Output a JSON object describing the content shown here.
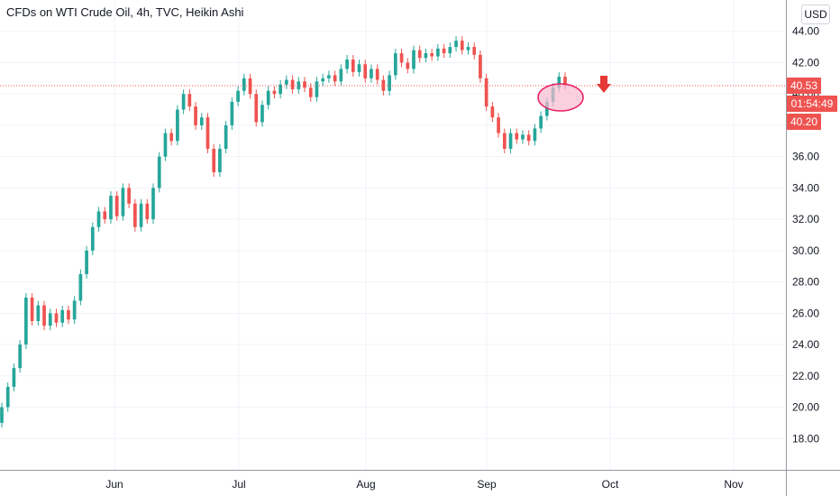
{
  "title": "CFDs on WTI Crude Oil, 4h, TVC, Heikin Ashi",
  "currency_button": "USD",
  "colors": {
    "up": "#26a69a",
    "down": "#ef5350",
    "price_line": "#ef5350",
    "label_bg": "#ef5350",
    "ellipse_fill": "#f8bbd0",
    "ellipse_stroke": "#e91e63",
    "arrow": "#e53935",
    "grid": "#f0f3fa",
    "axis_line": "#9598a1"
  },
  "price_labels": {
    "last": "40.53",
    "countdown": "01:54:49",
    "other": "40.20"
  },
  "chart_data": {
    "type": "candlestick",
    "title": "CFDs on WTI Crude Oil, 4h, TVC, Heikin Ashi",
    "ylim": [
      16,
      46
    ],
    "y_ticks": [
      "18.00",
      "20.00",
      "22.00",
      "24.00",
      "26.00",
      "28.00",
      "30.00",
      "32.00",
      "34.00",
      "36.00",
      "38.00",
      "40.00",
      "42.00",
      "44.00"
    ],
    "x_ticks": [
      "Jun",
      "Jul",
      "Aug",
      "Sep",
      "Oct",
      "Nov"
    ],
    "price_line": 40.53,
    "grid": true,
    "series": [
      {
        "values": [
          [
            19.0,
            20.0
          ],
          [
            20.0,
            21.3
          ],
          [
            21.3,
            22.5
          ],
          [
            22.5,
            24.0
          ],
          [
            24.0,
            27.0
          ],
          [
            27.0,
            25.5
          ],
          [
            25.5,
            26.5
          ],
          [
            26.5,
            25.2
          ],
          [
            25.2,
            26.0
          ],
          [
            26.0,
            25.4
          ],
          [
            25.4,
            26.2
          ],
          [
            26.2,
            25.6
          ],
          [
            25.6,
            26.8
          ],
          [
            26.8,
            28.5
          ],
          [
            28.5,
            30.0
          ],
          [
            30.0,
            31.5
          ],
          [
            31.5,
            32.5
          ],
          [
            32.5,
            32.0
          ],
          [
            32.0,
            33.5
          ],
          [
            33.5,
            32.2
          ],
          [
            32.2,
            34.0
          ],
          [
            34.0,
            33.0
          ],
          [
            33.0,
            31.5
          ],
          [
            31.5,
            33.0
          ],
          [
            33.0,
            32.0
          ],
          [
            32.0,
            34.0
          ],
          [
            34.0,
            36.0
          ],
          [
            36.0,
            37.5
          ],
          [
            37.5,
            37.0
          ],
          [
            37.0,
            39.0
          ],
          [
            39.0,
            40.0
          ],
          [
            40.0,
            39.2
          ],
          [
            39.2,
            38.0
          ],
          [
            38.0,
            38.5
          ],
          [
            38.5,
            36.5
          ],
          [
            36.5,
            35.0
          ],
          [
            35.0,
            36.5
          ],
          [
            36.5,
            38.0
          ],
          [
            38.0,
            39.5
          ],
          [
            39.5,
            40.2
          ],
          [
            40.2,
            41.0
          ],
          [
            41.0,
            40.0
          ],
          [
            40.0,
            38.2
          ],
          [
            38.2,
            39.3
          ],
          [
            39.3,
            40.2
          ],
          [
            40.2,
            40.0
          ],
          [
            40.0,
            40.6
          ],
          [
            40.6,
            40.9
          ],
          [
            40.9,
            40.3
          ],
          [
            40.3,
            40.8
          ],
          [
            40.8,
            40.4
          ],
          [
            40.4,
            39.8
          ],
          [
            39.8,
            40.8
          ],
          [
            40.8,
            41.0
          ],
          [
            41.0,
            41.2
          ],
          [
            41.2,
            40.8
          ],
          [
            40.8,
            41.6
          ],
          [
            41.6,
            42.2
          ],
          [
            42.2,
            41.4
          ],
          [
            41.4,
            41.9
          ],
          [
            41.9,
            41.0
          ],
          [
            41.0,
            41.6
          ],
          [
            41.6,
            40.9
          ],
          [
            40.9,
            40.2
          ],
          [
            40.2,
            41.2
          ],
          [
            41.2,
            42.6
          ],
          [
            42.6,
            42.0
          ],
          [
            42.0,
            41.6
          ],
          [
            41.6,
            42.8
          ],
          [
            42.8,
            42.3
          ],
          [
            42.3,
            42.6
          ],
          [
            42.6,
            42.4
          ],
          [
            42.4,
            42.9
          ],
          [
            42.9,
            42.6
          ],
          [
            42.6,
            43.0
          ],
          [
            43.0,
            43.4
          ],
          [
            43.4,
            42.8
          ],
          [
            42.8,
            43.0
          ],
          [
            43.0,
            42.5
          ],
          [
            42.5,
            41.0
          ],
          [
            41.0,
            39.2
          ],
          [
            39.2,
            38.5
          ],
          [
            38.5,
            37.5
          ],
          [
            37.5,
            36.5
          ],
          [
            36.5,
            37.5
          ],
          [
            37.5,
            37.1
          ],
          [
            37.1,
            37.4
          ],
          [
            37.4,
            37.0
          ],
          [
            37.0,
            37.8
          ],
          [
            37.8,
            38.6
          ],
          [
            38.6,
            39.5
          ],
          [
            39.5,
            40.4
          ],
          [
            40.4,
            41.1
          ],
          [
            41.1,
            40.53
          ]
        ]
      }
    ]
  }
}
